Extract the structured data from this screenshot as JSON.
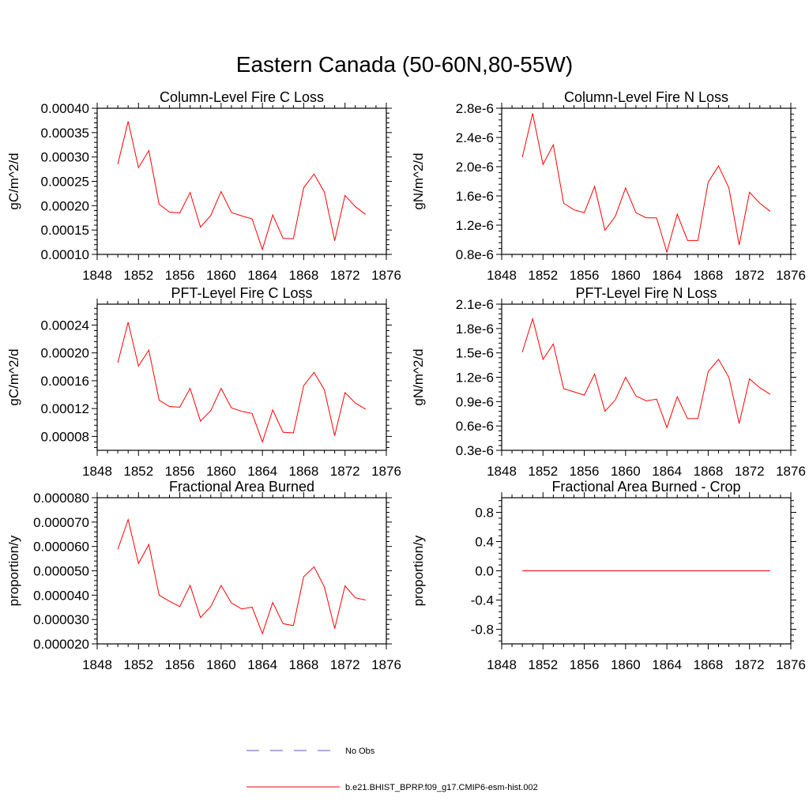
{
  "title": "Eastern Canada (50-60N,80-55W)",
  "colors": {
    "series": "#ff0000",
    "obs": "#5a5ab4",
    "axis": "#000000"
  },
  "legend": {
    "placement": "bottom-center",
    "items": [
      {
        "label": "No Obs",
        "color": "#5a5ab4",
        "style": "dashed"
      },
      {
        "label": "b.e21.BHIST_BPRP.f09_g17.CMIP6-esm-hist.002",
        "color": "#ff0000",
        "style": "solid"
      }
    ]
  },
  "chart_data": [
    {
      "type": "line",
      "title": "Column-Level Fire C Loss",
      "ylabel": "gC/m^2/d",
      "xlim": [
        1848,
        1876
      ],
      "ylim": [
        0.0001,
        0.0004
      ],
      "xticks": [
        "1848",
        "1852",
        "1856",
        "1860",
        "1864",
        "1868",
        "1872",
        "1876"
      ],
      "yticks": [
        "0.00010",
        "0.00015",
        "0.00020",
        "0.00025",
        "0.00030",
        "0.00035",
        "0.00040"
      ],
      "x": [
        1850,
        1851,
        1852,
        1853,
        1854,
        1855,
        1856,
        1857,
        1858,
        1859,
        1860,
        1861,
        1862,
        1863,
        1864,
        1865,
        1866,
        1867,
        1868,
        1869,
        1870,
        1871,
        1872,
        1873,
        1874
      ],
      "series": [
        {
          "name": "b.e21.BHIST_BPRP.f09_g17.CMIP6-esm-hist.002",
          "values": [
            0.000285,
            0.000373,
            0.000278,
            0.000313,
            0.000203,
            0.000187,
            0.000185,
            0.000227,
            0.000156,
            0.00018,
            0.000229,
            0.000186,
            0.000179,
            0.000173,
            0.00011,
            0.000181,
            0.000133,
            0.000132,
            0.000237,
            0.000265,
            0.000228,
            0.000128,
            0.000221,
            0.000198,
            0.000182
          ]
        }
      ]
    },
    {
      "type": "line",
      "title": "Column-Level Fire N Loss",
      "ylabel": "gN/m^2/d",
      "xlim": [
        1848,
        1876
      ],
      "ylim": [
        8e-07,
        2.8e-06
      ],
      "xticks": [
        "1848",
        "1852",
        "1856",
        "1860",
        "1864",
        "1868",
        "1872",
        "1876"
      ],
      "yticks": [
        "0.8e-6",
        "1.2e-6",
        "1.6e-6",
        "2.0e-6",
        "2.4e-6",
        "2.8e-6"
      ],
      "x": [
        1850,
        1851,
        1852,
        1853,
        1854,
        1855,
        1856,
        1857,
        1858,
        1859,
        1860,
        1861,
        1862,
        1863,
        1864,
        1865,
        1866,
        1867,
        1868,
        1869,
        1870,
        1871,
        1872,
        1873,
        1874
      ],
      "series": [
        {
          "name": "b.e21.BHIST_BPRP.f09_g17.CMIP6-esm-hist.002",
          "values": [
            2.13e-06,
            2.73e-06,
            2.03e-06,
            2.3e-06,
            1.5e-06,
            1.41e-06,
            1.37e-06,
            1.73e-06,
            1.13e-06,
            1.32e-06,
            1.71e-06,
            1.37e-06,
            1.3e-06,
            1.3e-06,
            8.3e-07,
            1.35e-06,
            9.9e-07,
            9.9e-07,
            1.79e-06,
            2.01e-06,
            1.71e-06,
            9.3e-07,
            1.65e-06,
            1.5e-06,
            1.39e-06
          ]
        }
      ]
    },
    {
      "type": "line",
      "title": "PFT-Level Fire C Loss",
      "ylabel": "gC/m^2/d",
      "xlim": [
        1848,
        1876
      ],
      "ylim": [
        6e-05,
        0.00027
      ],
      "xticks": [
        "1848",
        "1852",
        "1856",
        "1860",
        "1864",
        "1868",
        "1872",
        "1876"
      ],
      "yticks": [
        "0.00008",
        "0.00012",
        "0.00016",
        "0.00020",
        "0.00024"
      ],
      "x": [
        1850,
        1851,
        1852,
        1853,
        1854,
        1855,
        1856,
        1857,
        1858,
        1859,
        1860,
        1861,
        1862,
        1863,
        1864,
        1865,
        1866,
        1867,
        1868,
        1869,
        1870,
        1871,
        1872,
        1873,
        1874
      ],
      "series": [
        {
          "name": "b.e21.BHIST_BPRP.f09_g17.CMIP6-esm-hist.002",
          "values": [
            0.000186,
            0.000244,
            0.000181,
            0.000204,
            0.000132,
            0.000123,
            0.000122,
            0.000149,
            0.000102,
            0.000117,
            0.000149,
            0.000121,
            0.000116,
            0.000113,
            7.2e-05,
            0.000118,
            8.6e-05,
            8.5e-05,
            0.000153,
            0.000172,
            0.000147,
            8.1e-05,
            0.000143,
            0.000128,
            0.000119
          ]
        }
      ]
    },
    {
      "type": "line",
      "title": "PFT-Level Fire N Loss",
      "ylabel": "gN/m^2/d",
      "xlim": [
        1848,
        1876
      ],
      "ylim": [
        3e-07,
        2.1e-06
      ],
      "xticks": [
        "1848",
        "1852",
        "1856",
        "1860",
        "1864",
        "1868",
        "1872",
        "1876"
      ],
      "yticks": [
        "0.3e-6",
        "0.6e-6",
        "0.9e-6",
        "1.2e-6",
        "1.5e-6",
        "1.8e-6",
        "2.1e-6"
      ],
      "x": [
        1850,
        1851,
        1852,
        1853,
        1854,
        1855,
        1856,
        1857,
        1858,
        1859,
        1860,
        1861,
        1862,
        1863,
        1864,
        1865,
        1866,
        1867,
        1868,
        1869,
        1870,
        1871,
        1872,
        1873,
        1874
      ],
      "series": [
        {
          "name": "b.e21.BHIST_BPRP.f09_g17.CMIP6-esm-hist.002",
          "values": [
            1.51e-06,
            1.92e-06,
            1.42e-06,
            1.61e-06,
            1.06e-06,
            1.02e-06,
            9.8e-07,
            1.24e-06,
            7.8e-07,
            9.2e-07,
            1.2e-06,
            9.7e-07,
            9.1e-07,
            9.3e-07,
            5.8e-07,
            9.6e-07,
            6.9e-07,
            6.9e-07,
            1.27e-06,
            1.42e-06,
            1.2e-06,
            6.3e-07,
            1.18e-06,
            1.07e-06,
            9.9e-07
          ]
        }
      ]
    },
    {
      "type": "line",
      "title": "Fractional Area Burned",
      "ylabel": "proportion/y",
      "xlim": [
        1848,
        1876
      ],
      "ylim": [
        2e-05,
        8e-05
      ],
      "xticks": [
        "1848",
        "1852",
        "1856",
        "1860",
        "1864",
        "1868",
        "1872",
        "1876"
      ],
      "yticks": [
        "0.000020",
        "0.000030",
        "0.000040",
        "0.000050",
        "0.000060",
        "0.000070",
        "0.000080"
      ],
      "x": [
        1850,
        1851,
        1852,
        1853,
        1854,
        1855,
        1856,
        1857,
        1858,
        1859,
        1860,
        1861,
        1862,
        1863,
        1864,
        1865,
        1866,
        1867,
        1868,
        1869,
        1870,
        1871,
        1872,
        1873,
        1874
      ],
      "series": [
        {
          "name": "b.e21.BHIST_BPRP.f09_g17.CMIP6-esm-hist.002",
          "values": [
            5.88e-05,
            7.1e-05,
            5.3e-05,
            6.08e-05,
            4e-05,
            3.75e-05,
            3.53e-05,
            4.4e-05,
            3.08e-05,
            3.53e-05,
            4.4e-05,
            3.68e-05,
            3.43e-05,
            3.51e-05,
            2.42e-05,
            3.7e-05,
            2.83e-05,
            2.75e-05,
            4.76e-05,
            5.16e-05,
            4.34e-05,
            2.63e-05,
            4.38e-05,
            3.89e-05,
            3.8e-05
          ]
        }
      ]
    },
    {
      "type": "line",
      "title": "Fractional Area Burned - Crop",
      "ylabel": "proportion/y",
      "xlim": [
        1848,
        1876
      ],
      "ylim": [
        -1.0,
        1.0
      ],
      "xticks": [
        "1848",
        "1852",
        "1856",
        "1860",
        "1864",
        "1868",
        "1872",
        "1876"
      ],
      "yticks": [
        "-0.8",
        "-0.4",
        "0.0",
        "0.4",
        "0.8"
      ],
      "x": [
        1850,
        1851,
        1852,
        1853,
        1854,
        1855,
        1856,
        1857,
        1858,
        1859,
        1860,
        1861,
        1862,
        1863,
        1864,
        1865,
        1866,
        1867,
        1868,
        1869,
        1870,
        1871,
        1872,
        1873,
        1874
      ],
      "series": [
        {
          "name": "b.e21.BHIST_BPRP.f09_g17.CMIP6-esm-hist.002",
          "values": [
            0,
            0,
            0,
            0,
            0,
            0,
            0,
            0,
            0,
            0,
            0,
            0,
            0,
            0,
            0,
            0,
            0,
            0,
            0,
            0,
            0,
            0,
            0,
            0,
            0
          ]
        }
      ]
    }
  ]
}
